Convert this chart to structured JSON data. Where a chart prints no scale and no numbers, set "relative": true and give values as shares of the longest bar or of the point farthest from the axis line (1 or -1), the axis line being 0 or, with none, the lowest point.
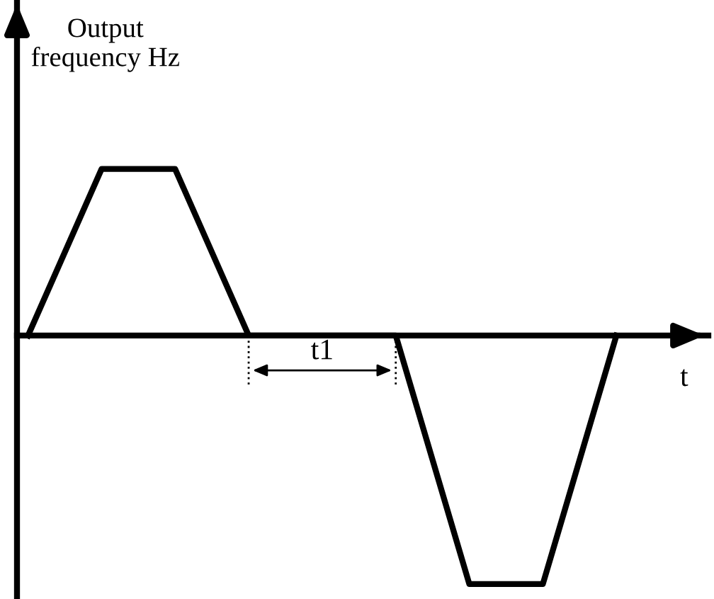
{
  "chart_data": {
    "type": "line",
    "relative": true,
    "xlabel": "t",
    "ylabel": "Output\nfrequency Hz",
    "categories": [
      null,
      null,
      null,
      null,
      null,
      null,
      null,
      null,
      null,
      null,
      null,
      null,
      null,
      null,
      null,
      null,
      null
    ],
    "series": [
      {
        "color": "#000000",
        "values": [
          0,
          null,
          0.67,
          null,
          0.67,
          null,
          0,
          null,
          null,
          null,
          0,
          null,
          -1,
          null,
          -1,
          null,
          0
        ]
      }
    ],
    "annotations": [
      "t1"
    ],
    "legend": false,
    "marker": "none",
    "line_style": "solid"
  }
}
